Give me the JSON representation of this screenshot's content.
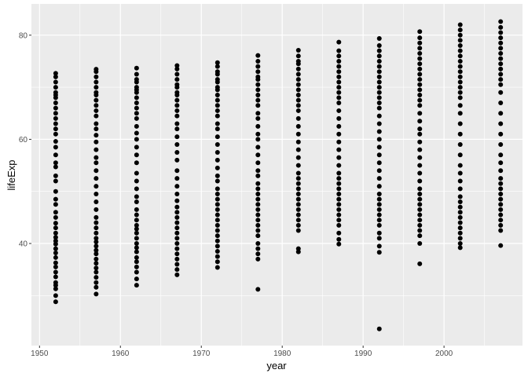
{
  "chart_data": {
    "type": "scatter",
    "title": "",
    "xlabel": "year",
    "ylabel": "lifeExp",
    "xlim": [
      1949.0,
      2009.7
    ],
    "ylim": [
      20.4,
      86.0
    ],
    "x_ticks": [
      1950,
      1960,
      1970,
      1980,
      1990,
      2000
    ],
    "y_ticks": [
      40,
      60,
      80
    ],
    "grid": true,
    "legend": "none",
    "colors": {
      "panel": "#EBEBEB",
      "grid": "#FFFFFF",
      "point": "#000000"
    },
    "series": [
      {
        "x": 1952,
        "values": [
          28.8,
          30.0,
          31.3,
          32.0,
          32.5,
          33.6,
          34.5,
          35.5,
          36.3,
          37.3,
          38.2,
          39.0,
          39.9,
          40.5,
          41.2,
          42.0,
          43.0,
          43.9,
          45.0,
          46.0,
          47.5,
          48.5,
          50.0,
          52.0,
          53.0,
          54.7,
          55.5,
          57.0,
          58.5,
          59.6,
          61.0,
          62.0,
          63.0,
          64.0,
          65.0,
          66.0,
          67.0,
          68.0,
          68.5,
          69.0,
          70.0,
          71.0,
          72.0,
          72.67
        ]
      },
      {
        "x": 1957,
        "values": [
          30.3,
          31.6,
          32.5,
          33.5,
          34.5,
          35.3,
          36.2,
          37.0,
          38.0,
          38.7,
          39.5,
          40.3,
          41.0,
          42.0,
          43.0,
          44.0,
          45.0,
          46.5,
          48.0,
          49.5,
          51.0,
          52.5,
          54.0,
          55.5,
          56.5,
          58.0,
          59.5,
          60.8,
          62.0,
          63.0,
          64.5,
          65.5,
          66.5,
          67.5,
          68.5,
          69.0,
          70.0,
          71.0,
          72.0,
          73.0,
          73.47
        ]
      },
      {
        "x": 1962,
        "values": [
          32.0,
          33.2,
          34.5,
          35.5,
          36.5,
          37.3,
          38.4,
          39.2,
          40.0,
          41.0,
          42.0,
          42.8,
          43.5,
          44.5,
          45.5,
          46.5,
          48.0,
          49.0,
          50.5,
          52.0,
          53.5,
          55.5,
          57.0,
          58.5,
          60.0,
          61.2,
          62.5,
          64.0,
          65.0,
          66.0,
          67.0,
          68.0,
          69.0,
          69.5,
          70.0,
          71.0,
          71.5,
          72.5,
          73.68
        ]
      },
      {
        "x": 1967,
        "values": [
          34.0,
          35.0,
          36.0,
          37.0,
          38.0,
          39.0,
          40.0,
          41.0,
          42.0,
          43.0,
          44.0,
          45.0,
          46.0,
          47.0,
          48.2,
          49.5,
          51.0,
          52.5,
          54.0,
          56.0,
          57.5,
          59.0,
          60.5,
          62.0,
          63.0,
          64.5,
          65.5,
          66.5,
          67.5,
          68.5,
          69.0,
          70.0,
          70.5,
          71.5,
          72.5,
          73.5,
          74.16
        ]
      },
      {
        "x": 1972,
        "values": [
          35.4,
          36.5,
          37.5,
          38.5,
          39.5,
          40.5,
          41.5,
          42.5,
          43.5,
          44.5,
          45.5,
          46.5,
          47.5,
          48.5,
          49.5,
          50.5,
          52.0,
          53.0,
          54.5,
          56.0,
          57.5,
          59.0,
          60.5,
          62.0,
          63.0,
          64.5,
          65.5,
          66.5,
          67.5,
          68.5,
          69.5,
          70.0,
          71.0,
          71.5,
          72.5,
          73.0,
          74.0,
          74.72
        ]
      },
      {
        "x": 1977,
        "values": [
          31.2,
          37.0,
          38.0,
          39.0,
          40.0,
          41.5,
          42.5,
          43.5,
          44.5,
          45.5,
          46.5,
          47.5,
          48.5,
          49.5,
          50.5,
          51.5,
          53.0,
          54.0,
          55.5,
          57.0,
          58.5,
          60.0,
          61.0,
          62.5,
          64.0,
          65.0,
          66.5,
          67.5,
          68.5,
          69.5,
          70.5,
          71.5,
          72.0,
          73.0,
          74.0,
          75.0,
          76.11
        ]
      },
      {
        "x": 1982,
        "values": [
          38.4,
          39.0,
          42.5,
          43.5,
          44.5,
          45.5,
          46.5,
          47.5,
          48.5,
          49.5,
          50.5,
          51.5,
          52.5,
          53.5,
          55.0,
          56.5,
          58.0,
          59.5,
          61.0,
          62.5,
          64.0,
          65.5,
          66.5,
          67.5,
          68.5,
          69.5,
          70.5,
          71.5,
          72.5,
          73.5,
          74.5,
          75.0,
          76.0,
          77.11
        ]
      },
      {
        "x": 1987,
        "values": [
          39.9,
          40.8,
          42.0,
          43.5,
          44.5,
          45.5,
          46.5,
          47.5,
          48.5,
          49.5,
          50.5,
          51.5,
          52.5,
          53.5,
          55.0,
          56.5,
          58.0,
          59.5,
          61.0,
          62.5,
          64.0,
          65.5,
          67.0,
          68.0,
          69.0,
          70.0,
          71.0,
          72.0,
          73.0,
          74.0,
          75.0,
          76.0,
          77.0,
          78.67
        ]
      },
      {
        "x": 1992,
        "values": [
          23.6,
          38.3,
          39.5,
          41.0,
          42.0,
          43.5,
          44.5,
          45.5,
          46.5,
          47.5,
          48.5,
          49.5,
          51.0,
          52.5,
          54.0,
          55.5,
          57.0,
          58.5,
          60.0,
          61.5,
          63.0,
          64.5,
          66.0,
          67.0,
          68.0,
          69.0,
          70.0,
          71.0,
          72.0,
          73.0,
          74.0,
          75.0,
          76.0,
          77.0,
          78.0,
          79.36
        ]
      },
      {
        "x": 1997,
        "values": [
          36.1,
          40.0,
          41.5,
          42.5,
          43.5,
          44.5,
          45.5,
          46.5,
          47.5,
          48.5,
          49.5,
          50.5,
          52.0,
          53.5,
          55.0,
          56.5,
          58.0,
          59.5,
          61.0,
          62.0,
          63.5,
          65.0,
          66.5,
          67.5,
          68.5,
          69.5,
          70.5,
          71.5,
          72.5,
          73.5,
          74.5,
          75.5,
          76.5,
          77.5,
          78.5,
          79.5,
          80.69
        ]
      },
      {
        "x": 2002,
        "values": [
          39.2,
          40.0,
          41.0,
          42.0,
          43.0,
          44.0,
          45.0,
          46.0,
          47.0,
          48.0,
          49.0,
          50.5,
          52.0,
          53.5,
          55.0,
          57.0,
          59.0,
          61.0,
          63.0,
          65.0,
          66.5,
          68.0,
          69.0,
          70.0,
          71.0,
          72.0,
          73.0,
          74.0,
          75.0,
          76.0,
          77.0,
          78.0,
          79.0,
          80.0,
          81.0,
          82.0
        ]
      },
      {
        "x": 2007,
        "values": [
          39.6,
          42.5,
          43.5,
          44.5,
          45.5,
          46.5,
          47.5,
          48.5,
          49.5,
          50.5,
          51.5,
          52.5,
          54.0,
          55.5,
          57.0,
          59.0,
          61.0,
          63.0,
          65.0,
          67.0,
          69.0,
          70.5,
          71.5,
          72.5,
          73.5,
          74.5,
          75.5,
          76.5,
          77.5,
          78.5,
          79.5,
          80.5,
          81.5,
          82.6
        ]
      }
    ]
  }
}
